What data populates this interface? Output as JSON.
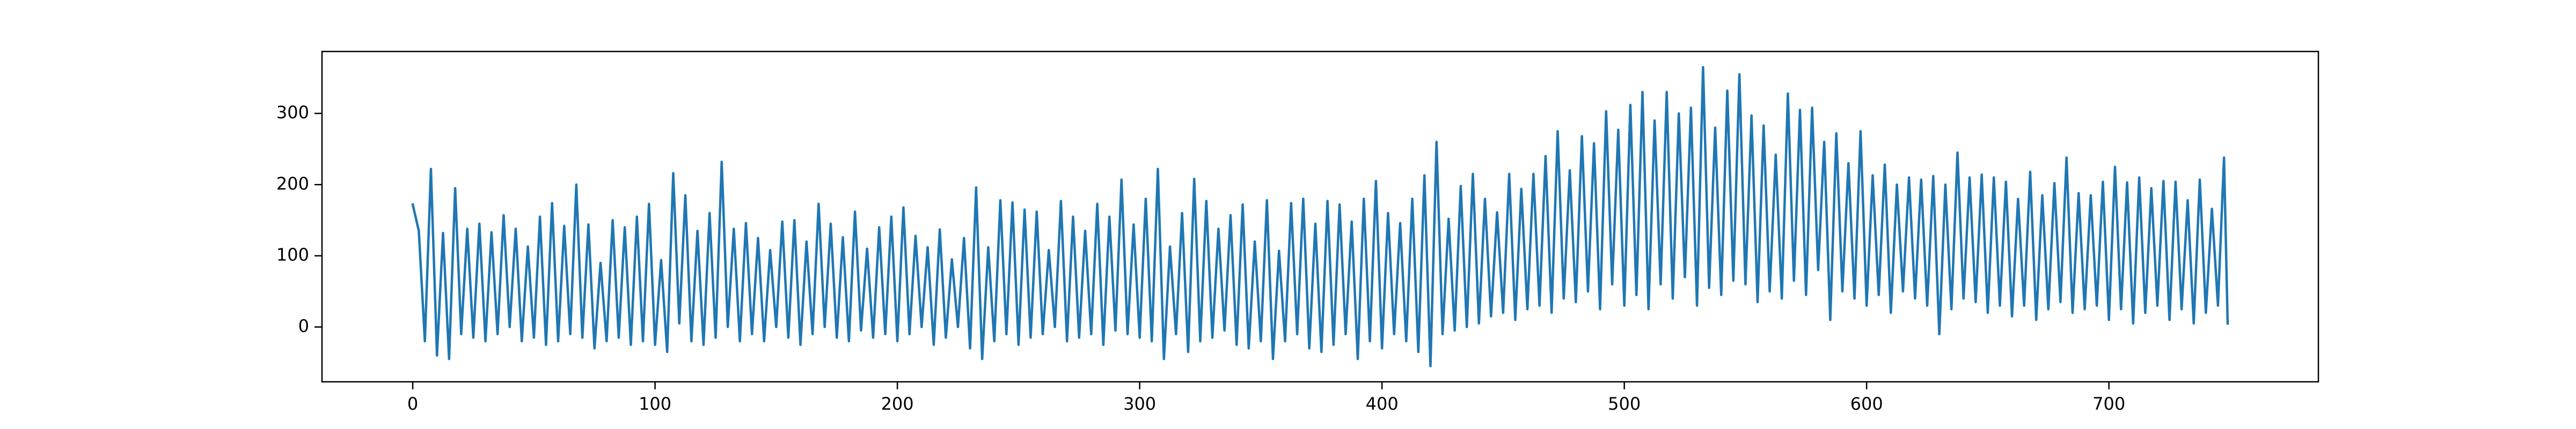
{
  "chart_data": {
    "type": "line",
    "color": "#1f77b4",
    "xlim": [
      -37.45,
      786.45
    ],
    "ylim": [
      -77,
      387
    ],
    "xticks": [
      0,
      100,
      200,
      300,
      400,
      500,
      600,
      700
    ],
    "yticks": [
      0,
      100,
      200,
      300
    ],
    "x": [
      0,
      2.5,
      5,
      7.5,
      10,
      12.5,
      15,
      17.5,
      20,
      22.5,
      25,
      27.5,
      30,
      32.5,
      35,
      37.5,
      40,
      42.5,
      45,
      47.5,
      50,
      52.5,
      55,
      57.5,
      60,
      62.5,
      65,
      67.5,
      70,
      72.5,
      75,
      77.5,
      80,
      82.5,
      85,
      87.5,
      90,
      92.5,
      95,
      97.5,
      100,
      102.5,
      105,
      107.5,
      110,
      112.5,
      115,
      117.5,
      120,
      122.5,
      125,
      127.5,
      130,
      132.5,
      135,
      137.5,
      140,
      142.5,
      145,
      147.5,
      150,
      152.5,
      155,
      157.5,
      160,
      162.5,
      165,
      167.5,
      170,
      172.5,
      175,
      177.5,
      180,
      182.5,
      185,
      187.5,
      190,
      192.5,
      195,
      197.5,
      200,
      202.5,
      205,
      207.5,
      210,
      212.5,
      215,
      217.5,
      220,
      222.5,
      225,
      227.5,
      230,
      232.5,
      235,
      237.5,
      240,
      242.5,
      245,
      247.5,
      250,
      252.5,
      255,
      257.5,
      260,
      262.5,
      265,
      267.5,
      270,
      272.5,
      275,
      277.5,
      280,
      282.5,
      285,
      287.5,
      290,
      292.5,
      295,
      297.5,
      300,
      302.5,
      305,
      307.5,
      310,
      312.5,
      315,
      317.5,
      320,
      322.5,
      325,
      327.5,
      330,
      332.5,
      335,
      337.5,
      340,
      342.5,
      345,
      347.5,
      350,
      352.5,
      355,
      357.5,
      360,
      362.5,
      365,
      367.5,
      370,
      372.5,
      375,
      377.5,
      380,
      382.5,
      385,
      387.5,
      390,
      392.5,
      395,
      397.5,
      400,
      402.5,
      405,
      407.5,
      410,
      412.5,
      415,
      417.5,
      420,
      422.5,
      425,
      427.5,
      430,
      432.5,
      435,
      437.5,
      440,
      442.5,
      445,
      447.5,
      450,
      452.5,
      455,
      457.5,
      460,
      462.5,
      465,
      467.5,
      470,
      472.5,
      475,
      477.5,
      480,
      482.5,
      485,
      487.5,
      490,
      492.5,
      495,
      497.5,
      500,
      502.5,
      505,
      507.5,
      510,
      512.5,
      515,
      517.5,
      520,
      522.5,
      525,
      527.5,
      530,
      532.5,
      535,
      537.5,
      540,
      542.5,
      545,
      547.5,
      550,
      552.5,
      555,
      557.5,
      560,
      562.5,
      565,
      567.5,
      570,
      572.5,
      575,
      577.5,
      580,
      582.5,
      585,
      587.5,
      590,
      592.5,
      595,
      597.5,
      600,
      602.5,
      605,
      607.5,
      610,
      612.5,
      615,
      617.5,
      620,
      622.5,
      625,
      627.5,
      630,
      632.5,
      635,
      637.5,
      640,
      642.5,
      645,
      647.5,
      650,
      652.5,
      655,
      657.5,
      660,
      662.5,
      665,
      667.5,
      670,
      672.5,
      675,
      677.5,
      680,
      682.5,
      685,
      687.5,
      690,
      692.5,
      695,
      697.5,
      700,
      702.5,
      705,
      707.5,
      710,
      712.5,
      715,
      717.5,
      720,
      722.5,
      725,
      727.5,
      730,
      732.5,
      735,
      737.5,
      740,
      742.5,
      745,
      747.5,
      749
    ],
    "values": [
      172,
      135,
      -20,
      222,
      -40,
      132,
      -45,
      195,
      -10,
      138,
      -15,
      145,
      -20,
      133,
      -10,
      157,
      0,
      138,
      -20,
      113,
      -15,
      155,
      -25,
      174,
      -20,
      142,
      -10,
      200,
      -15,
      144,
      -30,
      90,
      -20,
      150,
      -15,
      140,
      -25,
      155,
      -20,
      173,
      -25,
      94,
      -35,
      216,
      5,
      185,
      -20,
      135,
      -25,
      160,
      -15,
      232,
      0,
      138,
      -20,
      146,
      -10,
      125,
      -20,
      108,
      0,
      148,
      -15,
      150,
      -25,
      120,
      -10,
      173,
      0,
      145,
      -15,
      126,
      -20,
      162,
      -5,
      110,
      -15,
      140,
      -10,
      155,
      -20,
      168,
      -10,
      128,
      0,
      112,
      -25,
      137,
      -15,
      95,
      0,
      125,
      -30,
      196,
      -45,
      112,
      -20,
      178,
      -10,
      175,
      -25,
      165,
      -15,
      162,
      -10,
      108,
      0,
      177,
      -20,
      155,
      -15,
      135,
      -10,
      173,
      -25,
      155,
      -5,
      207,
      -10,
      144,
      -15,
      180,
      -20,
      222,
      -45,
      113,
      -10,
      160,
      -35,
      208,
      -20,
      177,
      -15,
      138,
      -5,
      157,
      -25,
      172,
      -30,
      120,
      -20,
      178,
      -45,
      107,
      -20,
      174,
      -10,
      180,
      -30,
      145,
      -35,
      177,
      -25,
      172,
      -10,
      148,
      -45,
      180,
      -20,
      205,
      -30,
      160,
      -10,
      146,
      -20,
      180,
      -35,
      213,
      -55,
      260,
      -10,
      152,
      -5,
      198,
      0,
      215,
      5,
      180,
      15,
      161,
      20,
      215,
      10,
      194,
      25,
      215,
      30,
      240,
      20,
      275,
      40,
      220,
      35,
      268,
      50,
      258,
      25,
      303,
      60,
      277,
      30,
      312,
      45,
      330,
      25,
      290,
      60,
      330,
      40,
      300,
      70,
      308,
      30,
      365,
      55,
      280,
      45,
      332,
      65,
      355,
      60,
      297,
      35,
      283,
      50,
      242,
      40,
      328,
      65,
      305,
      45,
      308,
      80,
      260,
      10,
      272,
      50,
      230,
      40,
      275,
      30,
      213,
      45,
      228,
      20,
      200,
      50,
      210,
      40,
      207,
      30,
      212,
      -10,
      200,
      25,
      245,
      40,
      210,
      35,
      214,
      20,
      210,
      30,
      204,
      15,
      180,
      30,
      218,
      10,
      185,
      25,
      202,
      35,
      238,
      20,
      188,
      25,
      185,
      30,
      204,
      10,
      225,
      25,
      203,
      5,
      210,
      20,
      195,
      30,
      205,
      10,
      204,
      25,
      178,
      5,
      207,
      20,
      166,
      30,
      238,
      5
    ]
  }
}
